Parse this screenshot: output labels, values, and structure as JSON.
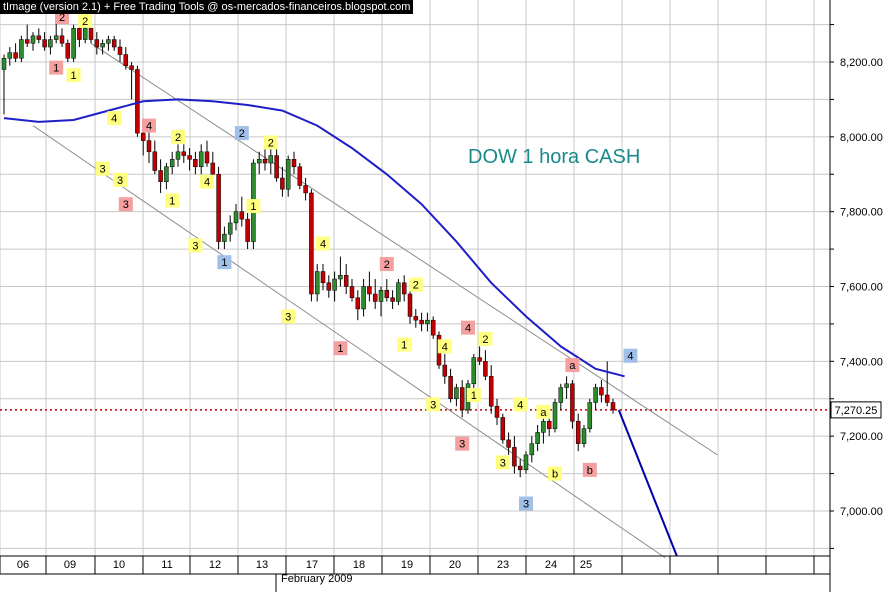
{
  "header": {
    "title": "tImage (version 2.1) + Free Trading Tools @ os-mercados-financeiros.blogspot.com"
  },
  "colors": {
    "background": "#ffffff",
    "grid": "#c8c8c8",
    "candle_up": "#2e8b2e",
    "candle_down": "#c00000",
    "moving_average": "#1f1fc8",
    "projection": "#0000a8",
    "channel_lines": "#8c8c8c",
    "last_price_line": "#c00000",
    "annotation_text": "#1a8a8a",
    "label_yellow": "#ffff80",
    "label_red": "#f4a0a0",
    "label_blue": "#a0c0e8"
  },
  "chart_data": {
    "type": "candlestick",
    "annotation": "DOW 1 hora CASH",
    "x_tick_labels": [
      "06",
      "09",
      "10",
      "11",
      "12",
      "13",
      "17",
      "18",
      "19",
      "20",
      "23",
      "24",
      "25"
    ],
    "x_axis_title": "February 2009",
    "y_ticks": [
      7000,
      7200,
      7400,
      7600,
      7800,
      8000,
      8200
    ],
    "y_tick_labels": [
      "7,000.00",
      "7,200.00",
      "7,400.00",
      "7,600.00",
      "7,800.00",
      "8,000.00",
      "8,200.00"
    ],
    "ylim": [
      6870,
      8320
    ],
    "xlim": [
      0,
      192
    ],
    "grid": true,
    "last_price": 7270.25,
    "last_price_label": "7,270.25",
    "candles": [
      [
        1,
        8180,
        8220,
        8060,
        8210
      ],
      [
        2,
        8210,
        8240,
        8190,
        8225
      ],
      [
        3,
        8225,
        8250,
        8200,
        8210
      ],
      [
        4,
        8210,
        8270,
        8200,
        8260
      ],
      [
        5,
        8260,
        8300,
        8240,
        8250
      ],
      [
        6,
        8250,
        8280,
        8230,
        8270
      ],
      [
        7,
        8270,
        8290,
        8250,
        8260
      ],
      [
        8,
        8260,
        8280,
        8230,
        8240
      ],
      [
        9,
        8240,
        8270,
        8220,
        8260
      ],
      [
        10,
        8260,
        8320,
        8250,
        8270
      ],
      [
        11,
        8270,
        8290,
        8240,
        8250
      ],
      [
        12,
        8250,
        8260,
        8200,
        8210
      ],
      [
        13,
        8210,
        8300,
        8200,
        8290
      ],
      [
        14,
        8290,
        8310,
        8240,
        8260
      ],
      [
        15,
        8260,
        8300,
        8250,
        8290
      ],
      [
        16,
        8290,
        8310,
        8250,
        8260
      ],
      [
        17,
        8260,
        8280,
        8220,
        8240
      ],
      [
        18,
        8240,
        8260,
        8220,
        8250
      ],
      [
        19,
        8250,
        8270,
        8230,
        8260
      ],
      [
        20,
        8260,
        8270,
        8230,
        8240
      ],
      [
        21,
        8240,
        8260,
        8200,
        8220
      ],
      [
        22,
        8220,
        8240,
        8180,
        8190
      ],
      [
        23,
        8190,
        8200,
        8100,
        8180
      ],
      [
        24,
        8180,
        8190,
        8000,
        8010
      ],
      [
        25,
        8010,
        8040,
        7950,
        7990
      ],
      [
        26,
        7990,
        8020,
        7930,
        7960
      ],
      [
        27,
        7960,
        7990,
        7900,
        7910
      ],
      [
        28,
        7910,
        7940,
        7850,
        7880
      ],
      [
        29,
        7880,
        7930,
        7860,
        7920
      ],
      [
        30,
        7920,
        7960,
        7900,
        7940
      ],
      [
        31,
        7940,
        7980,
        7920,
        7960
      ],
      [
        32,
        7960,
        7980,
        7930,
        7950
      ],
      [
        33,
        7950,
        7970,
        7910,
        7940
      ],
      [
        34,
        7940,
        7960,
        7900,
        7920
      ],
      [
        35,
        7920,
        7980,
        7900,
        7960
      ],
      [
        36,
        7960,
        7990,
        7920,
        7930
      ],
      [
        37,
        7930,
        7960,
        7880,
        7900
      ],
      [
        38,
        7900,
        7920,
        7700,
        7720
      ],
      [
        39,
        7720,
        7760,
        7700,
        7740
      ],
      [
        40,
        7740,
        7790,
        7720,
        7770
      ],
      [
        41,
        7770,
        7820,
        7750,
        7800
      ],
      [
        42,
        7800,
        7840,
        7760,
        7780
      ],
      [
        43,
        7780,
        7800,
        7700,
        7720
      ],
      [
        44,
        7720,
        7940,
        7700,
        7930
      ],
      [
        45,
        7930,
        7960,
        7900,
        7940
      ],
      [
        46,
        7940,
        7970,
        7910,
        7930
      ],
      [
        47,
        7930,
        7980,
        7900,
        7950
      ],
      [
        48,
        7950,
        7970,
        7880,
        7890
      ],
      [
        49,
        7890,
        7920,
        7840,
        7860
      ],
      [
        50,
        7860,
        7950,
        7840,
        7940
      ],
      [
        51,
        7940,
        7960,
        7900,
        7920
      ],
      [
        52,
        7920,
        7930,
        7860,
        7870
      ],
      [
        53,
        7870,
        7890,
        7830,
        7850
      ],
      [
        54,
        7850,
        7860,
        7560,
        7580
      ],
      [
        55,
        7580,
        7660,
        7560,
        7640
      ],
      [
        56,
        7640,
        7660,
        7590,
        7610
      ],
      [
        57,
        7610,
        7630,
        7570,
        7590
      ],
      [
        58,
        7590,
        7640,
        7560,
        7620
      ],
      [
        59,
        7620,
        7680,
        7600,
        7630
      ],
      [
        60,
        7630,
        7660,
        7580,
        7600
      ],
      [
        61,
        7600,
        7620,
        7560,
        7570
      ],
      [
        62,
        7570,
        7590,
        7510,
        7540
      ],
      [
        63,
        7540,
        7620,
        7520,
        7600
      ],
      [
        64,
        7600,
        7640,
        7560,
        7580
      ],
      [
        65,
        7580,
        7620,
        7540,
        7560
      ],
      [
        66,
        7560,
        7600,
        7520,
        7590
      ],
      [
        67,
        7590,
        7620,
        7560,
        7570
      ],
      [
        68,
        7570,
        7590,
        7540,
        7560
      ],
      [
        69,
        7560,
        7620,
        7550,
        7610
      ],
      [
        70,
        7610,
        7630,
        7560,
        7580
      ],
      [
        71,
        7580,
        7600,
        7500,
        7520
      ],
      [
        72,
        7520,
        7540,
        7490,
        7510
      ],
      [
        73,
        7510,
        7530,
        7480,
        7500
      ],
      [
        74,
        7500,
        7530,
        7480,
        7510
      ],
      [
        75,
        7510,
        7520,
        7460,
        7470
      ],
      [
        76,
        7470,
        7480,
        7380,
        7390
      ],
      [
        77,
        7390,
        7420,
        7340,
        7360
      ],
      [
        78,
        7360,
        7380,
        7290,
        7300
      ],
      [
        79,
        7300,
        7340,
        7280,
        7330
      ],
      [
        80,
        7330,
        7350,
        7250,
        7270
      ],
      [
        81,
        7270,
        7350,
        7260,
        7340
      ],
      [
        82,
        7340,
        7420,
        7320,
        7410
      ],
      [
        83,
        7410,
        7440,
        7390,
        7400
      ],
      [
        84,
        7400,
        7430,
        7350,
        7360
      ],
      [
        85,
        7360,
        7390,
        7260,
        7280
      ],
      [
        86,
        7280,
        7300,
        7230,
        7250
      ],
      [
        87,
        7250,
        7260,
        7180,
        7190
      ],
      [
        88,
        7190,
        7210,
        7150,
        7170
      ],
      [
        89,
        7170,
        7200,
        7100,
        7120
      ],
      [
        90,
        7120,
        7140,
        7090,
        7110
      ],
      [
        91,
        7110,
        7160,
        7100,
        7150
      ],
      [
        92,
        7150,
        7200,
        7130,
        7180
      ],
      [
        93,
        7180,
        7230,
        7160,
        7210
      ],
      [
        94,
        7210,
        7260,
        7180,
        7240
      ],
      [
        95,
        7240,
        7280,
        7200,
        7220
      ],
      [
        96,
        7220,
        7300,
        7210,
        7290
      ],
      [
        97,
        7290,
        7340,
        7270,
        7330
      ],
      [
        98,
        7330,
        7360,
        7300,
        7340
      ],
      [
        99,
        7340,
        7350,
        7220,
        7240
      ],
      [
        100,
        7240,
        7260,
        7160,
        7180
      ],
      [
        101,
        7180,
        7230,
        7170,
        7220
      ],
      [
        102,
        7220,
        7300,
        7210,
        7290
      ],
      [
        103,
        7290,
        7340,
        7270,
        7330
      ],
      [
        104,
        7330,
        7350,
        7290,
        7310
      ],
      [
        105,
        7310,
        7400,
        7280,
        7290
      ],
      [
        106,
        7290,
        7300,
        7260,
        7270
      ]
    ],
    "moving_average": [
      [
        0,
        8050
      ],
      [
        6,
        8040
      ],
      [
        12,
        8045
      ],
      [
        18,
        8070
      ],
      [
        24,
        8095
      ],
      [
        30,
        8100
      ],
      [
        36,
        8095
      ],
      [
        42,
        8085
      ],
      [
        48,
        8070
      ],
      [
        54,
        8030
      ],
      [
        60,
        7970
      ],
      [
        66,
        7900
      ],
      [
        72,
        7820
      ],
      [
        78,
        7720
      ],
      [
        84,
        7610
      ],
      [
        90,
        7520
      ],
      [
        96,
        7440
      ],
      [
        102,
        7380
      ],
      [
        107,
        7360
      ]
    ],
    "channel_upper": [
      [
        16,
        8250
      ],
      [
        124,
        7150
      ]
    ],
    "channel_lower": [
      [
        6,
        8030
      ],
      [
        115,
        6875
      ]
    ],
    "projection": [
      [
        107,
        7270
      ],
      [
        117,
        6880
      ]
    ],
    "wave_labels": [
      {
        "t": "2",
        "x": 11,
        "y": 8320,
        "c": "red"
      },
      {
        "t": "2",
        "x": 15,
        "y": 8310,
        "c": "yellow"
      },
      {
        "t": "1",
        "x": 10,
        "y": 8185,
        "c": "red"
      },
      {
        "t": "1",
        "x": 13,
        "y": 8165,
        "c": "yellow"
      },
      {
        "t": "4",
        "x": 20,
        "y": 8050,
        "c": "yellow"
      },
      {
        "t": "4",
        "x": 26,
        "y": 8030,
        "c": "red"
      },
      {
        "t": "2",
        "x": 31,
        "y": 8000,
        "c": "yellow"
      },
      {
        "t": "3",
        "x": 18,
        "y": 7915,
        "c": "yellow"
      },
      {
        "t": "3",
        "x": 21,
        "y": 7885,
        "c": "yellow"
      },
      {
        "t": "3",
        "x": 22,
        "y": 7820,
        "c": "red"
      },
      {
        "t": "4",
        "x": 36,
        "y": 7880,
        "c": "yellow"
      },
      {
        "t": "1",
        "x": 30,
        "y": 7830,
        "c": "yellow"
      },
      {
        "t": "3",
        "x": 34,
        "y": 7710,
        "c": "yellow"
      },
      {
        "t": "1",
        "x": 39,
        "y": 7665,
        "c": "blue"
      },
      {
        "t": "2",
        "x": 42,
        "y": 8010,
        "c": "blue"
      },
      {
        "t": "2",
        "x": 47,
        "y": 7985,
        "c": "yellow"
      },
      {
        "t": "1",
        "x": 44,
        "y": 7815,
        "c": "yellow"
      },
      {
        "t": "4",
        "x": 56,
        "y": 7715,
        "c": "yellow"
      },
      {
        "t": "3",
        "x": 50,
        "y": 7520,
        "c": "yellow"
      },
      {
        "t": "2",
        "x": 67,
        "y": 7660,
        "c": "red"
      },
      {
        "t": "2",
        "x": 72,
        "y": 7605,
        "c": "yellow"
      },
      {
        "t": "1",
        "x": 59,
        "y": 7435,
        "c": "red"
      },
      {
        "t": "1",
        "x": 70,
        "y": 7445,
        "c": "yellow"
      },
      {
        "t": "4",
        "x": 77,
        "y": 7440,
        "c": "yellow"
      },
      {
        "t": "4",
        "x": 81,
        "y": 7490,
        "c": "red"
      },
      {
        "t": "2",
        "x": 84,
        "y": 7460,
        "c": "yellow"
      },
      {
        "t": "3",
        "x": 75,
        "y": 7285,
        "c": "yellow"
      },
      {
        "t": "1",
        "x": 82,
        "y": 7310,
        "c": "yellow"
      },
      {
        "t": "3",
        "x": 80,
        "y": 7180,
        "c": "red"
      },
      {
        "t": "4",
        "x": 90,
        "y": 7285,
        "c": "yellow"
      },
      {
        "t": "a",
        "x": 94,
        "y": 7265,
        "c": "yellow"
      },
      {
        "t": "3",
        "x": 87,
        "y": 7130,
        "c": "yellow"
      },
      {
        "t": "b",
        "x": 96,
        "y": 7100,
        "c": "yellow"
      },
      {
        "t": "3",
        "x": 91,
        "y": 7020,
        "c": "blue"
      },
      {
        "t": "a",
        "x": 99,
        "y": 7390,
        "c": "red"
      },
      {
        "t": "b",
        "x": 102,
        "y": 7110,
        "c": "red"
      },
      {
        "t": "4",
        "x": 109,
        "y": 7415,
        "c": "blue"
      }
    ]
  }
}
